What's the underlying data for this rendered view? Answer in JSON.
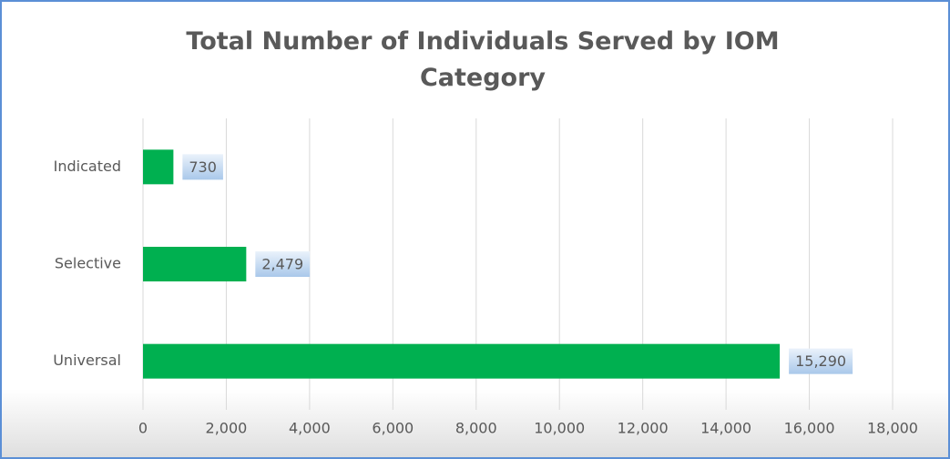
{
  "chart_data": {
    "type": "barh",
    "title": "Total Number of Individuals Served by IOM Category",
    "categories": [
      "Indicated",
      "Selective",
      "Universal"
    ],
    "values": [
      730,
      2479,
      15290
    ],
    "value_labels": [
      "730",
      "2,479",
      "15,290"
    ],
    "color": "#00b050",
    "xlim": [
      0,
      18000
    ],
    "xticks": [
      0,
      {
        "value": 2000,
        "label": "2,000"
      },
      {
        "value": 4000,
        "label": "4,000"
      },
      {
        "value": 6000,
        "label": "6,000"
      },
      {
        "value": 8000,
        "label": "8,000"
      },
      {
        "value": 10000,
        "label": "10,000"
      },
      {
        "value": 12000,
        "label": "12,000"
      },
      {
        "value": 14000,
        "label": "14,000"
      },
      {
        "value": 16000,
        "label": "16,000"
      },
      {
        "value": 18000,
        "label": "18,000"
      }
    ],
    "grid": true
  }
}
